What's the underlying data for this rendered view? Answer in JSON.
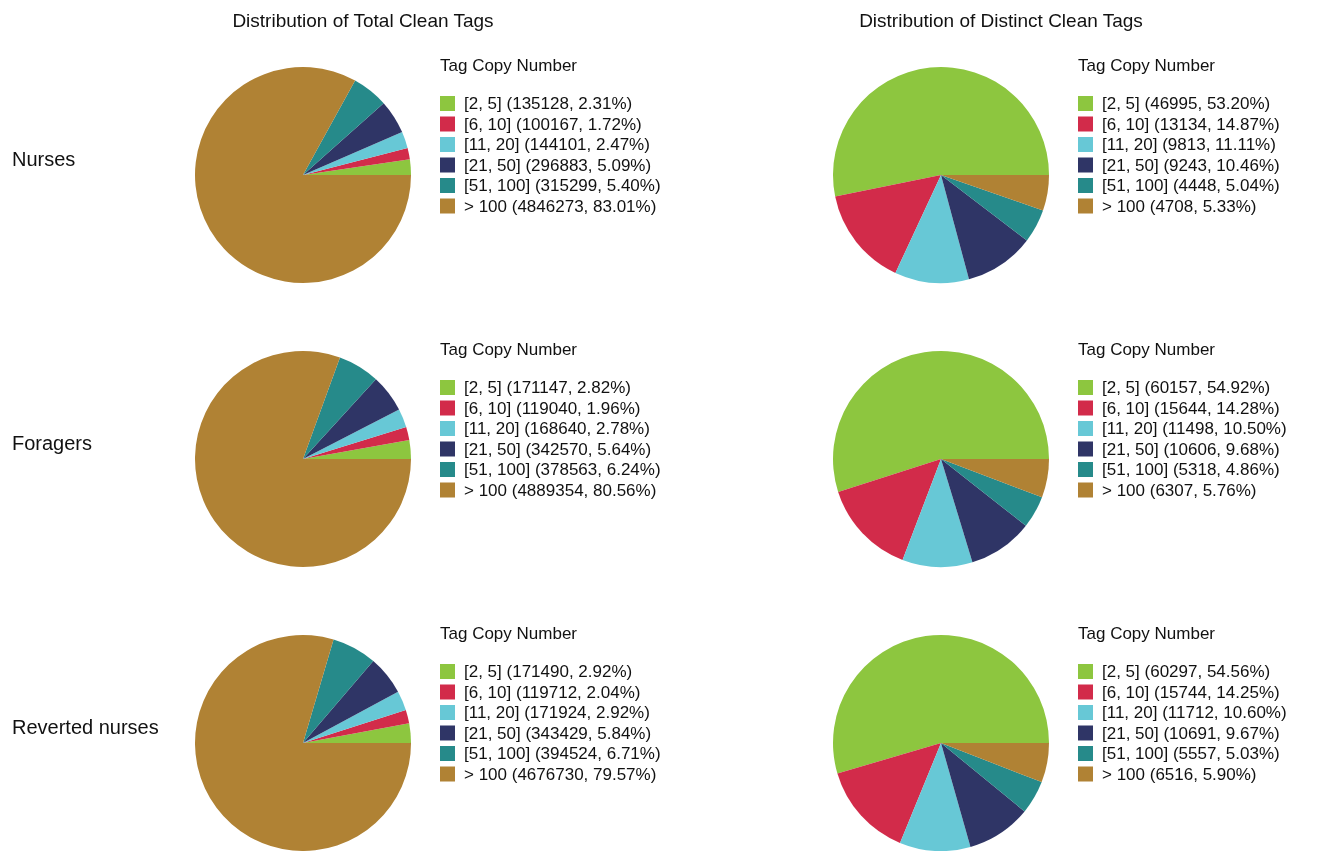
{
  "chart_data": [
    {
      "type": "pie",
      "title": "Distribution of Total Clean Tags",
      "ylabel": "Nurses",
      "legend_title": "Tag Copy Number",
      "legend": "right",
      "categories": [
        "[2, 5] (135128, 2.31%)",
        "[6, 10] (100167, 1.72%)",
        "[11, 20] (144101, 2.47%)",
        "[21, 50] (296883, 5.09%)",
        "[51, 100] (315299, 5.40%)",
        "> 100 (4846273, 83.01%)"
      ],
      "values": [
        135128,
        100167,
        144101,
        296883,
        315299,
        4846273
      ],
      "colors": [
        "#8dc63f",
        "#d22b4a",
        "#67c8d6",
        "#2f3566",
        "#268a8a",
        "#b08234"
      ]
    },
    {
      "type": "pie",
      "title": "Distribution of Distinct Clean Tags",
      "legend_title": "Tag Copy Number",
      "legend": "right",
      "categories": [
        "[2, 5] (46995, 53.20%)",
        "[6, 10] (13134, 14.87%)",
        "[11, 20] (9813, 11.11%)",
        "[21, 50] (9243, 10.46%)",
        "[51, 100] (4448, 5.04%)",
        "> 100 (4708, 5.33%)"
      ],
      "values": [
        46995,
        13134,
        9813,
        9243,
        4448,
        4708
      ],
      "colors": [
        "#8dc63f",
        "#d22b4a",
        "#67c8d6",
        "#2f3566",
        "#268a8a",
        "#b08234"
      ]
    },
    {
      "type": "pie",
      "ylabel": "Foragers",
      "legend_title": "Tag Copy Number",
      "legend": "right",
      "categories": [
        "[2, 5] (171147, 2.82%)",
        "[6, 10] (119040, 1.96%)",
        "[11, 20] (168640, 2.78%)",
        "[21, 50] (342570, 5.64%)",
        "[51, 100] (378563, 6.24%)",
        "> 100 (4889354, 80.56%)"
      ],
      "values": [
        171147,
        119040,
        168640,
        342570,
        378563,
        4889354
      ],
      "colors": [
        "#8dc63f",
        "#d22b4a",
        "#67c8d6",
        "#2f3566",
        "#268a8a",
        "#b08234"
      ]
    },
    {
      "type": "pie",
      "legend_title": "Tag Copy Number",
      "legend": "right",
      "categories": [
        "[2, 5] (60157, 54.92%)",
        "[6, 10] (15644, 14.28%)",
        "[11, 20] (11498, 10.50%)",
        "[21, 50] (10606, 9.68%)",
        "[51, 100] (5318, 4.86%)",
        "> 100 (6307, 5.76%)"
      ],
      "values": [
        60157,
        15644,
        11498,
        10606,
        5318,
        6307
      ],
      "colors": [
        "#8dc63f",
        "#d22b4a",
        "#67c8d6",
        "#2f3566",
        "#268a8a",
        "#b08234"
      ]
    },
    {
      "type": "pie",
      "ylabel": "Reverted nurses",
      "legend_title": "Tag Copy Number",
      "legend": "right",
      "categories": [
        "[2, 5] (171490, 2.92%)",
        "[6, 10] (119712, 2.04%)",
        "[11, 20] (171924, 2.92%)",
        "[21, 50] (343429, 5.84%)",
        "[51, 100] (394524, 6.71%)",
        "> 100 (4676730, 79.57%)"
      ],
      "values": [
        171490,
        119712,
        171924,
        343429,
        394524,
        4676730
      ],
      "colors": [
        "#8dc63f",
        "#d22b4a",
        "#67c8d6",
        "#2f3566",
        "#268a8a",
        "#b08234"
      ]
    },
    {
      "type": "pie",
      "legend_title": "Tag Copy Number",
      "legend": "right",
      "categories": [
        "[2, 5] (60297, 54.56%)",
        "[6, 10] (15744, 14.25%)",
        "[11, 20] (11712, 10.60%)",
        "[21, 50] (10691, 9.67%)",
        "[51, 100] (5557, 5.03%)",
        "> 100 (6516, 5.90%)"
      ],
      "values": [
        60297,
        15744,
        11712,
        10691,
        5557,
        6516
      ],
      "colors": [
        "#8dc63f",
        "#d22b4a",
        "#67c8d6",
        "#2f3566",
        "#268a8a",
        "#b08234"
      ]
    }
  ]
}
